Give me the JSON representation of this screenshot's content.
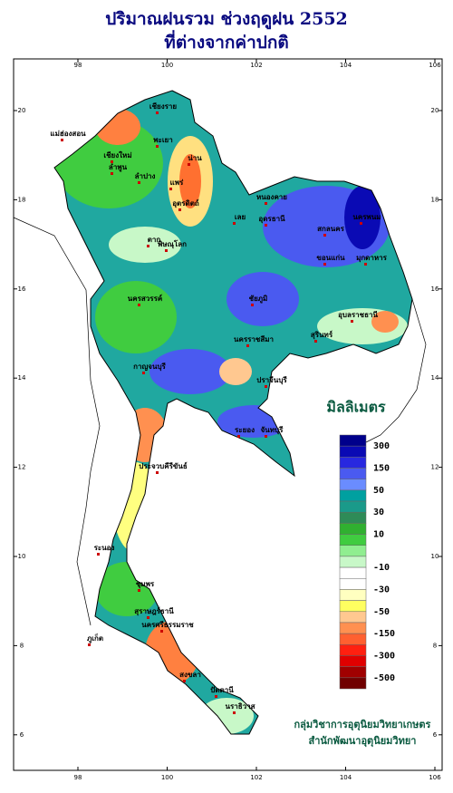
{
  "title": [
    "ปริมาณฝนรวม ช่วงฤดูฝน 2552",
    "ที่ต่างจากค่าปกติ"
  ],
  "xticks": [
    98,
    100,
    102,
    104,
    106
  ],
  "yticks": [
    6,
    8,
    10,
    12,
    14,
    16,
    18,
    20
  ],
  "legend": {
    "title": "มิลลิเมตร",
    "colors": [
      "#00008b",
      "#0a0ab4",
      "#2828e0",
      "#4a5af0",
      "#6a8cff",
      "#00a0a0",
      "#1a9a8a",
      "#2e8b57",
      "#30b030",
      "#40cc40",
      "#90ee90",
      "#c8f8c8",
      "#ffffff",
      "#ffffff",
      "#ffffc0",
      "#ffff60",
      "#ffc890",
      "#ff9050",
      "#ff6030",
      "#ff2010",
      "#e00000",
      "#a00000",
      "#700000"
    ],
    "ticks": [
      300,
      150,
      50,
      30,
      10,
      -10,
      -30,
      -50,
      -150,
      -300,
      -500
    ]
  },
  "provinces": [
    "เชียงราย",
    "แม่ฮ่องสอน",
    "เชียงใหม่",
    "ลำพูน",
    "พะเยา",
    "น่าน",
    "แพร่",
    "ลำปาง",
    "อุตรดิตถ์",
    "ตาก",
    "พิษณุโลก",
    "เลย",
    "หนองคาย",
    "อุดรธานี",
    "สกลนคร",
    "นครพนม",
    "ขอนแก่น",
    "มุกดาหาร",
    "นครสวรรค์",
    "ชัยภูมิ",
    "นครราชสีมา",
    "สุรินทร์",
    "อุบลราชธานี",
    "กาญจนบุรี",
    "ปราจีนบุรี",
    "ระยอง",
    "จันทบุรี",
    "ประจวบคีรีขันธ์",
    "ระนอง",
    "ชุมพร",
    "สุราษฎร์ธานี",
    "นครศรีธรรมราช",
    "ภูเก็ต",
    "สงขลา",
    "ปัตตานี",
    "นราธิวาส"
  ],
  "credits": [
    "กลุ่มวิชาการอุตุนิยมวิทยาเกษตร",
    "สำนักพัฒนาอุตุนิยมวิทยา"
  ]
}
